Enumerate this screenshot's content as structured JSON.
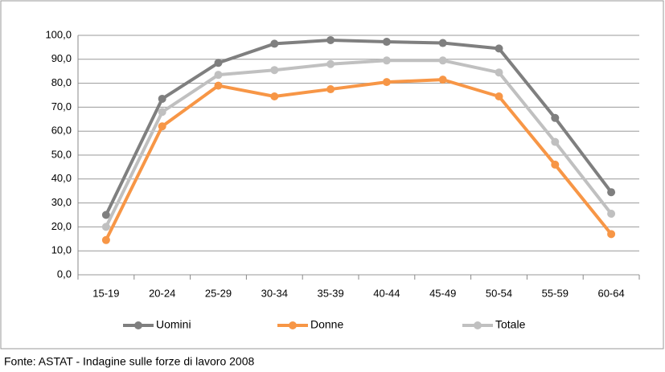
{
  "chart_data": {
    "type": "line",
    "categories": [
      "15-19",
      "20-24",
      "25-29",
      "30-34",
      "35-39",
      "40-44",
      "45-49",
      "50-54",
      "55-59",
      "60-64"
    ],
    "series": [
      {
        "name": "Uomini",
        "color": "#7f7f7f",
        "values": [
          25,
          73.5,
          88.5,
          96.5,
          98,
          97.3,
          96.8,
          94.5,
          65.5,
          34.5
        ]
      },
      {
        "name": "Donne",
        "color": "#f79646",
        "values": [
          14.5,
          62,
          79,
          74.5,
          77.5,
          80.5,
          81.5,
          74.5,
          46,
          17
        ]
      },
      {
        "name": "Totale",
        "color": "#c0c0c0",
        "values": [
          20,
          68,
          83.5,
          85.5,
          88,
          89.5,
          89.5,
          84.5,
          55.5,
          25.5
        ]
      }
    ],
    "ylim": [
      0,
      100
    ],
    "yticks": [
      {
        "value": 0,
        "label": "0,0"
      },
      {
        "value": 10,
        "label": "10,0"
      },
      {
        "value": 20,
        "label": "20,0"
      },
      {
        "value": 30,
        "label": "30,0"
      },
      {
        "value": 40,
        "label": "40,0"
      },
      {
        "value": 50,
        "label": "50,0"
      },
      {
        "value": 60,
        "label": "60,0"
      },
      {
        "value": 70,
        "label": "70,0"
      },
      {
        "value": 80,
        "label": "80,0"
      },
      {
        "value": 90,
        "label": "90,0"
      },
      {
        "value": 100,
        "label": "100,0"
      }
    ],
    "grid": true,
    "legend": "bottom",
    "source": "Fonte: ASTAT - Indagine sulle forze di lavoro 2008"
  }
}
